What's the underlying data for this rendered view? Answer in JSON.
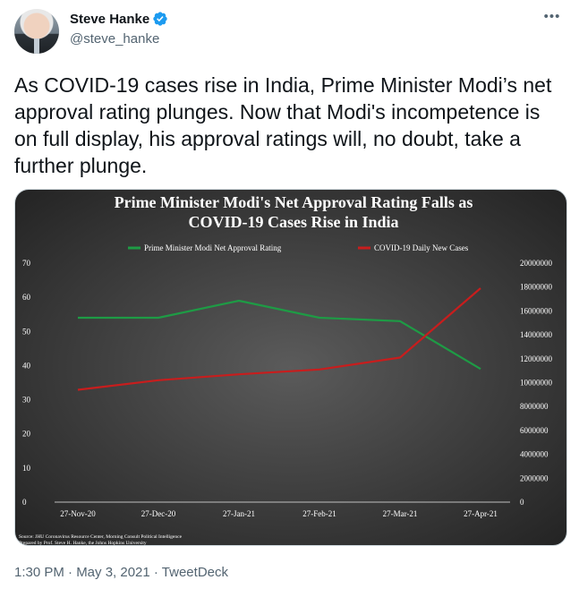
{
  "author": {
    "display_name": "Steve Hanke",
    "handle": "@steve_hanke"
  },
  "tweet": {
    "text": "As COVID-19 cases rise in India, Prime Minister Modi’s net approval rating plunges. Now that Modi's incompetence is on full display, his approval ratings will, no doubt, take a further plunge.",
    "timestamp": "1:30 PM · May 3, 2021 · TweetDeck"
  },
  "colors": {
    "approval": "#1e9b45",
    "cases": "#c81d1d",
    "verified": "#1d9bf0"
  },
  "icons": [
    "verified-badge-icon",
    "more-options-icon"
  ],
  "chart_data": {
    "type": "line",
    "title_line1": "Prime Minister Modi's Net Approval Rating Falls as",
    "title_line2": "COVID-19 Cases Rise in India",
    "categories": [
      "27-Nov-20",
      "27-Dec-20",
      "27-Jan-21",
      "27-Feb-21",
      "27-Mar-21",
      "27-Apr-21"
    ],
    "series": [
      {
        "name": "Prime Minister Modi Net Approval Rating",
        "axis": "left",
        "values": [
          54,
          54,
          59,
          54,
          53,
          39
        ]
      },
      {
        "name": "COVID-19 Daily New Cases",
        "axis": "right",
        "values": [
          9400000,
          10200000,
          10700000,
          11100000,
          12100000,
          17900000
        ]
      }
    ],
    "y_left": {
      "min": 0,
      "max": 70,
      "ticks": [
        0,
        10,
        20,
        30,
        40,
        50,
        60,
        70
      ]
    },
    "y_right": {
      "min": 0,
      "max": 20000000,
      "ticks": [
        0,
        2000000,
        4000000,
        6000000,
        8000000,
        10000000,
        12000000,
        14000000,
        16000000,
        18000000,
        20000000
      ]
    },
    "legend_position": "top",
    "grid": false,
    "source_line1": "Source: JHU Coronavirus Resource Center, Morning Consult Political Intelligence",
    "source_line2": "Prepared by Prof. Steve H. Hanke, the Johns Hopkins University"
  }
}
